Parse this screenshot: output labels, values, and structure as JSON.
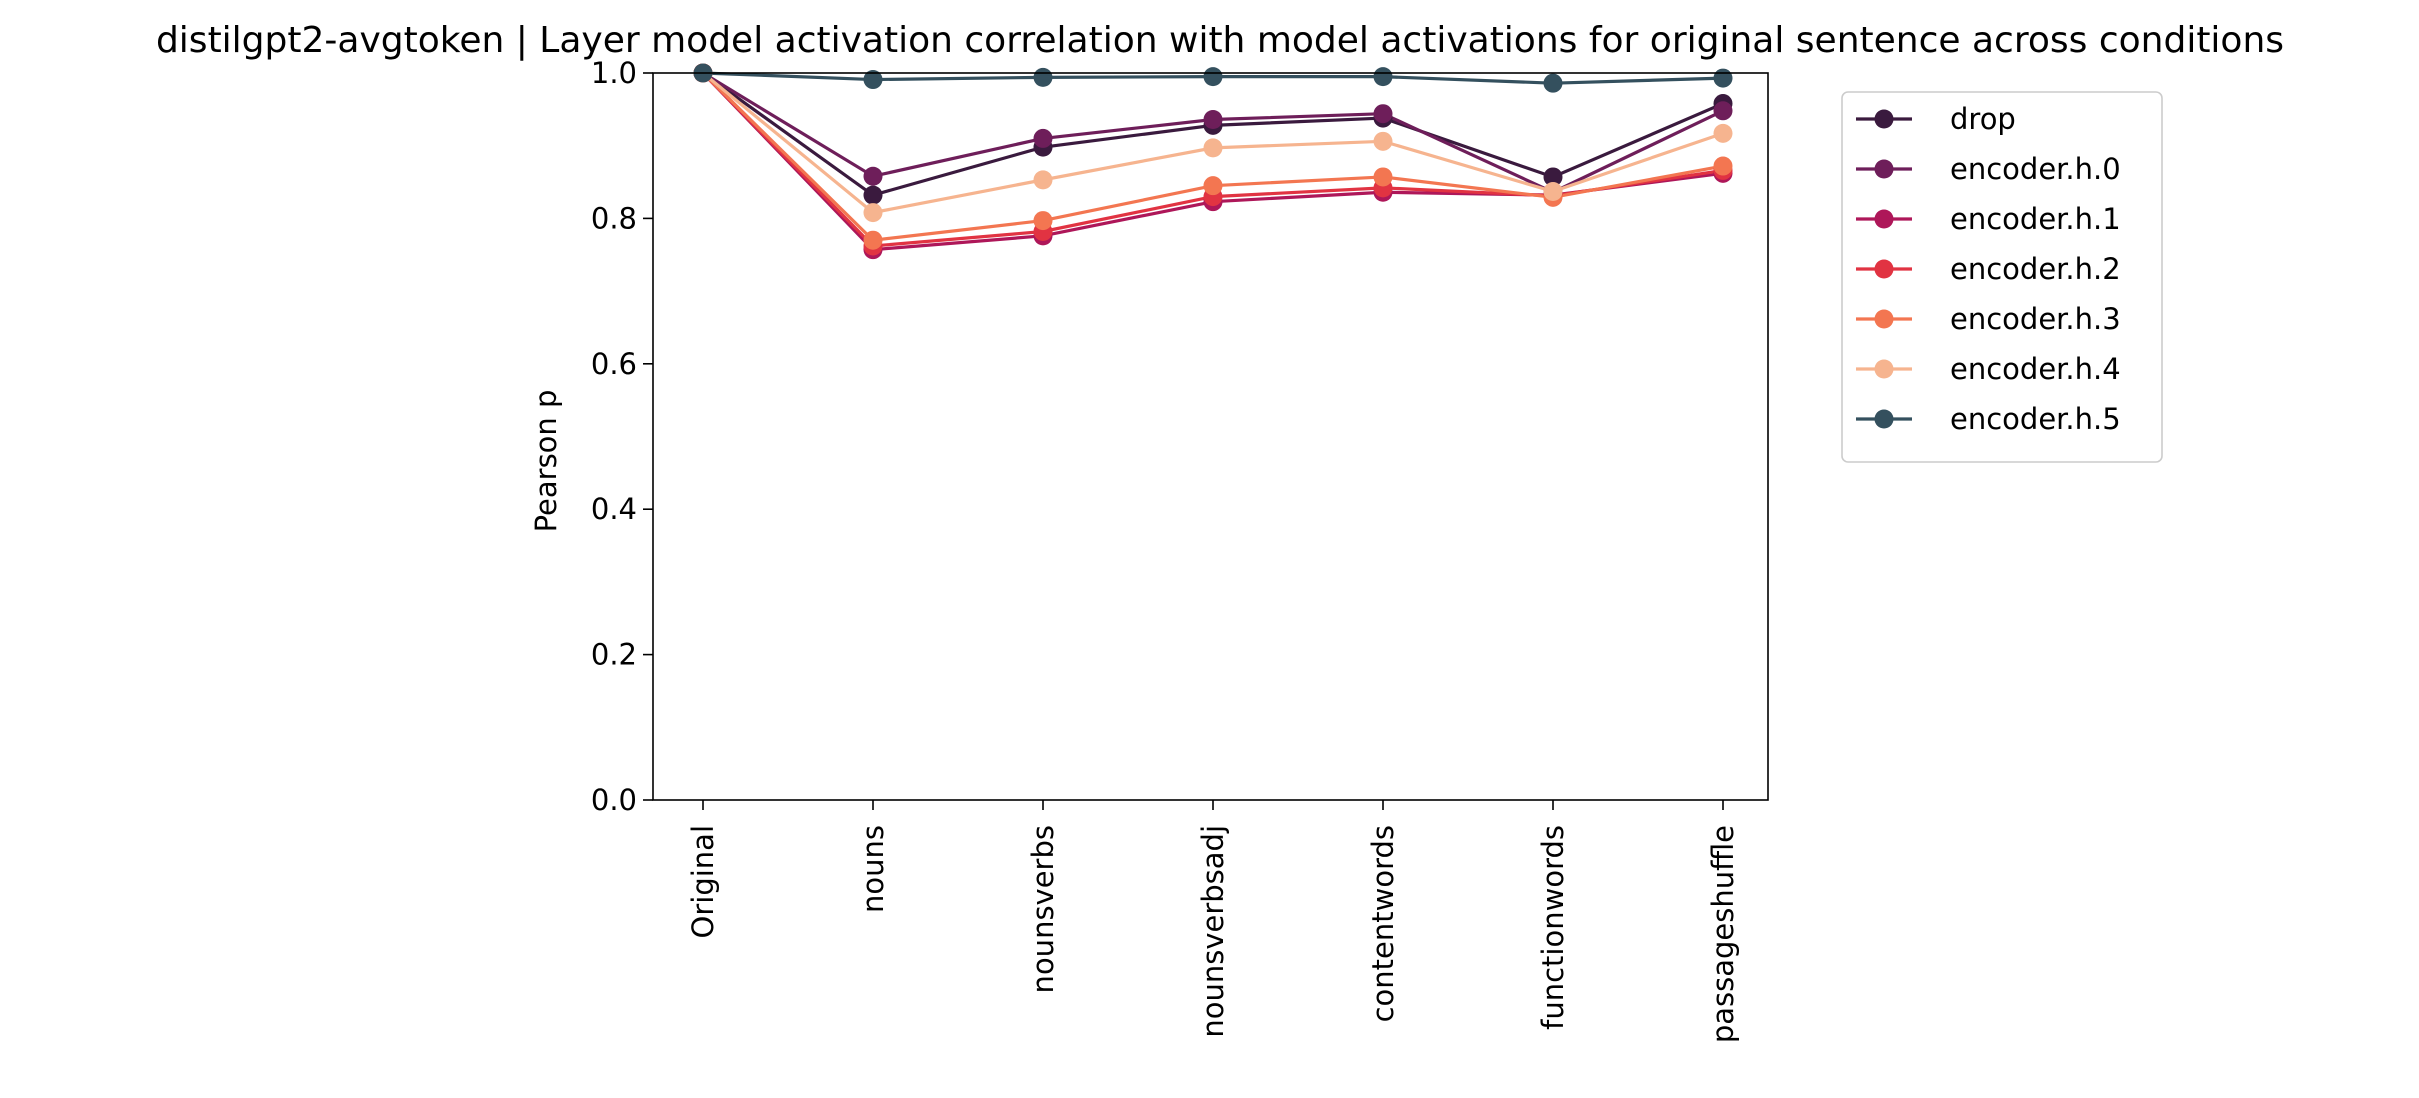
{
  "chart_data": {
    "type": "line",
    "title": "distilgpt2-avgtoken | Layer model activation correlation with model activations for original sentence across conditions",
    "xlabel": "",
    "ylabel": "Pearson p",
    "ylim": [
      0.0,
      1.0
    ],
    "yticks": [
      "0.0",
      "0.2",
      "0.4",
      "0.6",
      "0.8",
      "1.0"
    ],
    "grid": false,
    "legend_position": "outside-right",
    "categories": [
      "Original",
      "nouns",
      "nounsverbs",
      "nounsverbsadj",
      "contentwords",
      "functionwords",
      "passageshuffle"
    ],
    "series": [
      {
        "name": "drop",
        "color": "#3a1a3e",
        "values": [
          1.0,
          0.832,
          0.898,
          0.928,
          0.938,
          0.857,
          0.958
        ]
      },
      {
        "name": "encoder.h.0",
        "color": "#6e1e5a",
        "values": [
          1.0,
          0.858,
          0.91,
          0.936,
          0.944,
          0.836,
          0.948
        ]
      },
      {
        "name": "encoder.h.1",
        "color": "#ae1759",
        "values": [
          1.0,
          0.757,
          0.776,
          0.823,
          0.836,
          0.832,
          0.862
        ]
      },
      {
        "name": "encoder.h.2",
        "color": "#e13342",
        "values": [
          1.0,
          0.762,
          0.782,
          0.83,
          0.842,
          0.831,
          0.866
        ]
      },
      {
        "name": "encoder.h.3",
        "color": "#f37651",
        "values": [
          1.0,
          0.77,
          0.797,
          0.845,
          0.857,
          0.829,
          0.872
        ]
      },
      {
        "name": "encoder.h.4",
        "color": "#f6b48f",
        "values": [
          1.0,
          0.808,
          0.853,
          0.897,
          0.906,
          0.837,
          0.917
        ]
      },
      {
        "name": "encoder.h.5",
        "color": "#34505e",
        "values": [
          1.0,
          0.991,
          0.994,
          0.995,
          0.995,
          0.986,
          0.993
        ]
      }
    ]
  }
}
